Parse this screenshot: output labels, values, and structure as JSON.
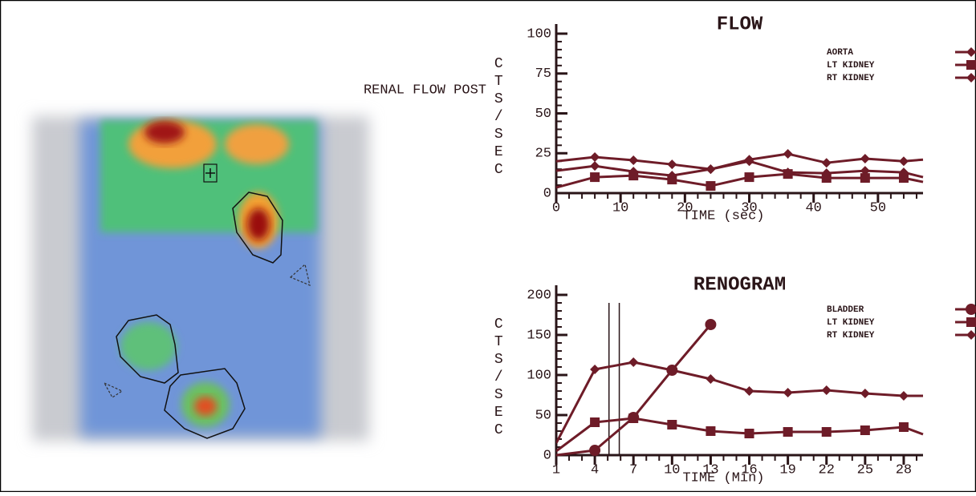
{
  "image": {
    "label": "RENAL FLOW POST"
  },
  "chart_data": [
    {
      "type": "line",
      "title": "FLOW",
      "xlabel": "TIME (sec)",
      "ylabel": "CTS/SEC",
      "x": [
        0,
        6,
        12,
        18,
        24,
        30,
        36,
        42,
        48,
        54,
        57
      ],
      "xlim": [
        0,
        57
      ],
      "xticks": [
        0,
        10,
        20,
        30,
        40,
        50
      ],
      "ylim": [
        0,
        100
      ],
      "yticks": [
        0,
        25,
        50,
        75,
        100
      ],
      "series": [
        {
          "name": "AORTA",
          "color": "#6e1c28",
          "marker": "diamond",
          "values": [
            20,
            22.6,
            20.6,
            18,
            15,
            21,
            24.6,
            19,
            21.6,
            20,
            21
          ]
        },
        {
          "name": "LT KIDNEY",
          "color": "#6e1c28",
          "marker": "square",
          "values": [
            3.5,
            10,
            11,
            8.5,
            4.5,
            10,
            12,
            9.5,
            9.5,
            9.5,
            7
          ]
        },
        {
          "name": "RT KIDNEY",
          "color": "#6e1c28",
          "marker": "diamond",
          "values": [
            14,
            17,
            13.5,
            11,
            15,
            20,
            13,
            12.5,
            14,
            13,
            10
          ]
        }
      ]
    },
    {
      "type": "line",
      "title": "RENOGRAM",
      "xlabel": "TIME (Min)",
      "ylabel": "CTS/SEC",
      "x": [
        1,
        4,
        7,
        10,
        13,
        16,
        19,
        22,
        25,
        28,
        29.5
      ],
      "xlim": [
        1,
        29.5
      ],
      "xticks": [
        1,
        4,
        7,
        10,
        13,
        16,
        19,
        22,
        25,
        28
      ],
      "ylim": [
        0,
        200
      ],
      "yticks": [
        0,
        50,
        100,
        150,
        200
      ],
      "vlines": [
        5.1,
        5.9
      ],
      "series": [
        {
          "name": "BLADDER",
          "color": "#6e1c28",
          "marker": "circle",
          "values": [
            0,
            6,
            47,
            106,
            163,
            null,
            null,
            null,
            null,
            null,
            null
          ]
        },
        {
          "name": "LT KIDNEY",
          "color": "#6e1c28",
          "marker": "square",
          "values": [
            5,
            41,
            46,
            38,
            30,
            27,
            29,
            29,
            31,
            35,
            26
          ]
        },
        {
          "name": "RT KIDNEY",
          "color": "#6e1c28",
          "marker": "diamond",
          "values": [
            15,
            107,
            116,
            106,
            95,
            80,
            78,
            81,
            77,
            74,
            74
          ]
        }
      ]
    }
  ]
}
